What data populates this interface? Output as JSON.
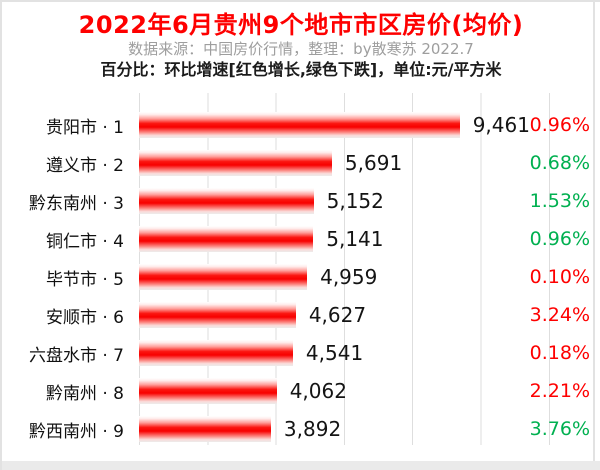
{
  "header": {
    "title": "2022年6月贵州9个地市市区房价(均价)",
    "subtitle": "数据来源：中国房价行情，整理：by散寒苏 2022.7",
    "note": "百分比：环比增速[红色增长,绿色下跌]，单位:元/平方米"
  },
  "colors": {
    "title_red": "#fe0000",
    "increase_red": "#fe0000",
    "decrease_green": "#00b050",
    "bar_red": "#f80000",
    "subtitle_gray": "#9e9e9e",
    "gridline": "#dedede"
  },
  "chart_data": {
    "type": "bar",
    "orientation": "horizontal",
    "title": "2022年6月贵州9个地市市区房价(均价)",
    "unit": "元/平方米",
    "xlim": [
      0,
      13600
    ],
    "gridline_interval": 2000,
    "legend_note": "红色=环比增长, 绿色=环比下跌",
    "categories": [
      "贵阳市",
      "遵义市",
      "黔东南州",
      "铜仁市",
      "毕节市",
      "安顺市",
      "六盘水市",
      "黔南州",
      "黔西南州"
    ],
    "ranks": [
      1,
      2,
      3,
      4,
      5,
      6,
      7,
      8,
      9
    ],
    "values": [
      9461,
      5691,
      5152,
      5141,
      4959,
      4627,
      4541,
      4062,
      3892
    ],
    "value_labels": [
      "9,461",
      "5,691",
      "5,152",
      "5,141",
      "4,959",
      "4,627",
      "4,541",
      "4,062",
      "3,892"
    ],
    "pct_change": [
      "0.96%",
      "0.68%",
      "1.53%",
      "0.96%",
      "0.10%",
      "3.24%",
      "0.18%",
      "2.21%",
      "3.76%"
    ],
    "pct_direction": [
      "up",
      "down",
      "down",
      "down",
      "up",
      "up",
      "up",
      "up",
      "down"
    ]
  }
}
